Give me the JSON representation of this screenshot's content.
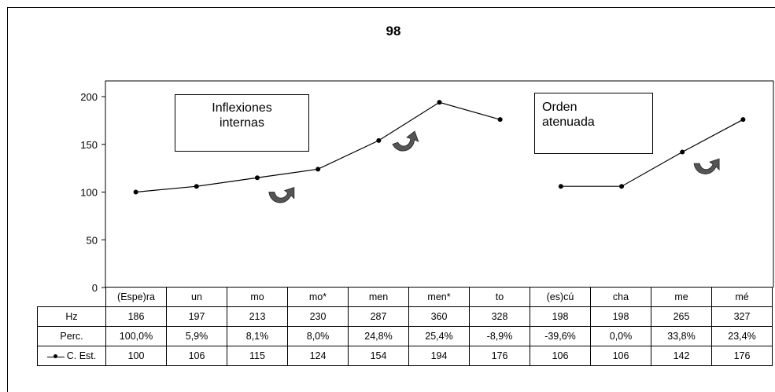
{
  "title": "98",
  "annotations": {
    "box1": [
      "Inflexiones",
      "internas"
    ],
    "box2": [
      "Orden",
      "atenuada"
    ]
  },
  "colors": {
    "line": "#000000",
    "arrow": "#555555",
    "frame": "#000000"
  },
  "icons": [
    "curved-arrow-icon"
  ],
  "chart_data": {
    "type": "line",
    "categories": [
      "(Espe)ra",
      "un",
      "mo",
      "mo*",
      "men",
      "men*",
      "to",
      "(es)cú",
      "cha",
      "me",
      "mé"
    ],
    "ylim": [
      0,
      200
    ],
    "yticks": [
      0,
      50,
      100,
      150,
      200
    ],
    "series": [
      {
        "name": "C. Est.",
        "values": [
          100,
          106,
          115,
          124,
          154,
          194,
          176,
          106,
          106,
          142,
          176
        ]
      }
    ],
    "segments": [
      [
        0,
        6
      ],
      [
        7,
        10
      ]
    ],
    "table": {
      "rows": [
        {
          "label": "Hz",
          "values": [
            "186",
            "197",
            "213",
            "230",
            "287",
            "360",
            "328",
            "198",
            "198",
            "265",
            "327"
          ]
        },
        {
          "label": "Perc.",
          "values": [
            "100,0%",
            "5,9%",
            "8,1%",
            "8,0%",
            "24,8%",
            "25,4%",
            "-8,9%",
            "-39,6%",
            "0,0%",
            "33,8%",
            "23,4%"
          ]
        },
        {
          "label": "C. Est.",
          "values": [
            "100",
            "106",
            "115",
            "124",
            "154",
            "194",
            "176",
            "106",
            "106",
            "142",
            "176"
          ],
          "legend": true
        }
      ]
    },
    "arrow_after_categories": [
      3,
      4,
      10
    ]
  }
}
